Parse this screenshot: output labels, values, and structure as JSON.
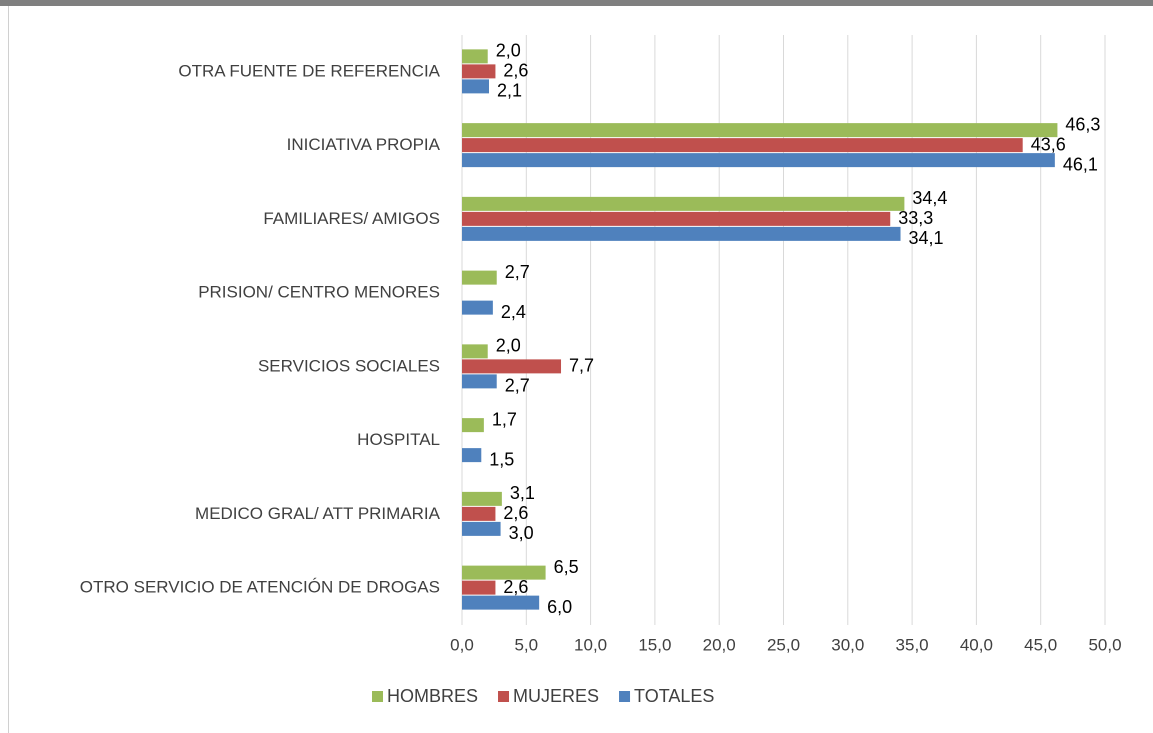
{
  "chart_data": {
    "type": "bar",
    "orientation": "horizontal",
    "categories": [
      "OTRA FUENTE DE REFERENCIA",
      "INICIATIVA PROPIA",
      "FAMILIARES/ AMIGOS",
      "PRISION/ CENTRO MENORES",
      "SERVICIOS SOCIALES",
      "HOSPITAL",
      "MEDICO GRAL/ ATT PRIMARIA",
      "OTRO SERVICIO DE ATENCIÓN DE DROGAS"
    ],
    "series": [
      {
        "name": "HOMBRES",
        "color": "#9bbb59",
        "values": [
          2.0,
          46.3,
          34.4,
          2.7,
          2.0,
          1.7,
          3.1,
          6.5
        ],
        "value_labels": [
          "2,0",
          "46,3",
          "34,4",
          "2,7",
          "2,0",
          "1,7",
          "3,1",
          "6,5"
        ]
      },
      {
        "name": "MUJERES",
        "color": "#c0504d",
        "values": [
          2.6,
          43.6,
          33.3,
          null,
          7.7,
          null,
          2.6,
          2.6
        ],
        "value_labels": [
          "2,6",
          "43,6",
          "33,3",
          null,
          "7,7",
          null,
          "2,6",
          "2,6"
        ]
      },
      {
        "name": "TOTALES",
        "color": "#4f81bd",
        "values": [
          2.1,
          46.1,
          34.1,
          2.4,
          2.7,
          1.5,
          3.0,
          6.0
        ],
        "value_labels": [
          "2,1",
          "46,1",
          "34,1",
          "2,4",
          "2,7",
          "1,5",
          "3,0",
          "6,0"
        ]
      }
    ],
    "xlim": [
      0,
      50
    ],
    "xticks": [
      {
        "value": 0,
        "label": "0,0"
      },
      {
        "value": 5,
        "label": "5,0"
      },
      {
        "value": 10,
        "label": "10,0"
      },
      {
        "value": 15,
        "label": "15,0"
      },
      {
        "value": 20,
        "label": "20,0"
      },
      {
        "value": 25,
        "label": "25,0"
      },
      {
        "value": 30,
        "label": "30,0"
      },
      {
        "value": 35,
        "label": "35,0"
      },
      {
        "value": 40,
        "label": "40,0"
      },
      {
        "value": 45,
        "label": "45,0"
      },
      {
        "value": 50,
        "label": "50,0"
      }
    ],
    "grid": true,
    "legend": "bottom"
  }
}
